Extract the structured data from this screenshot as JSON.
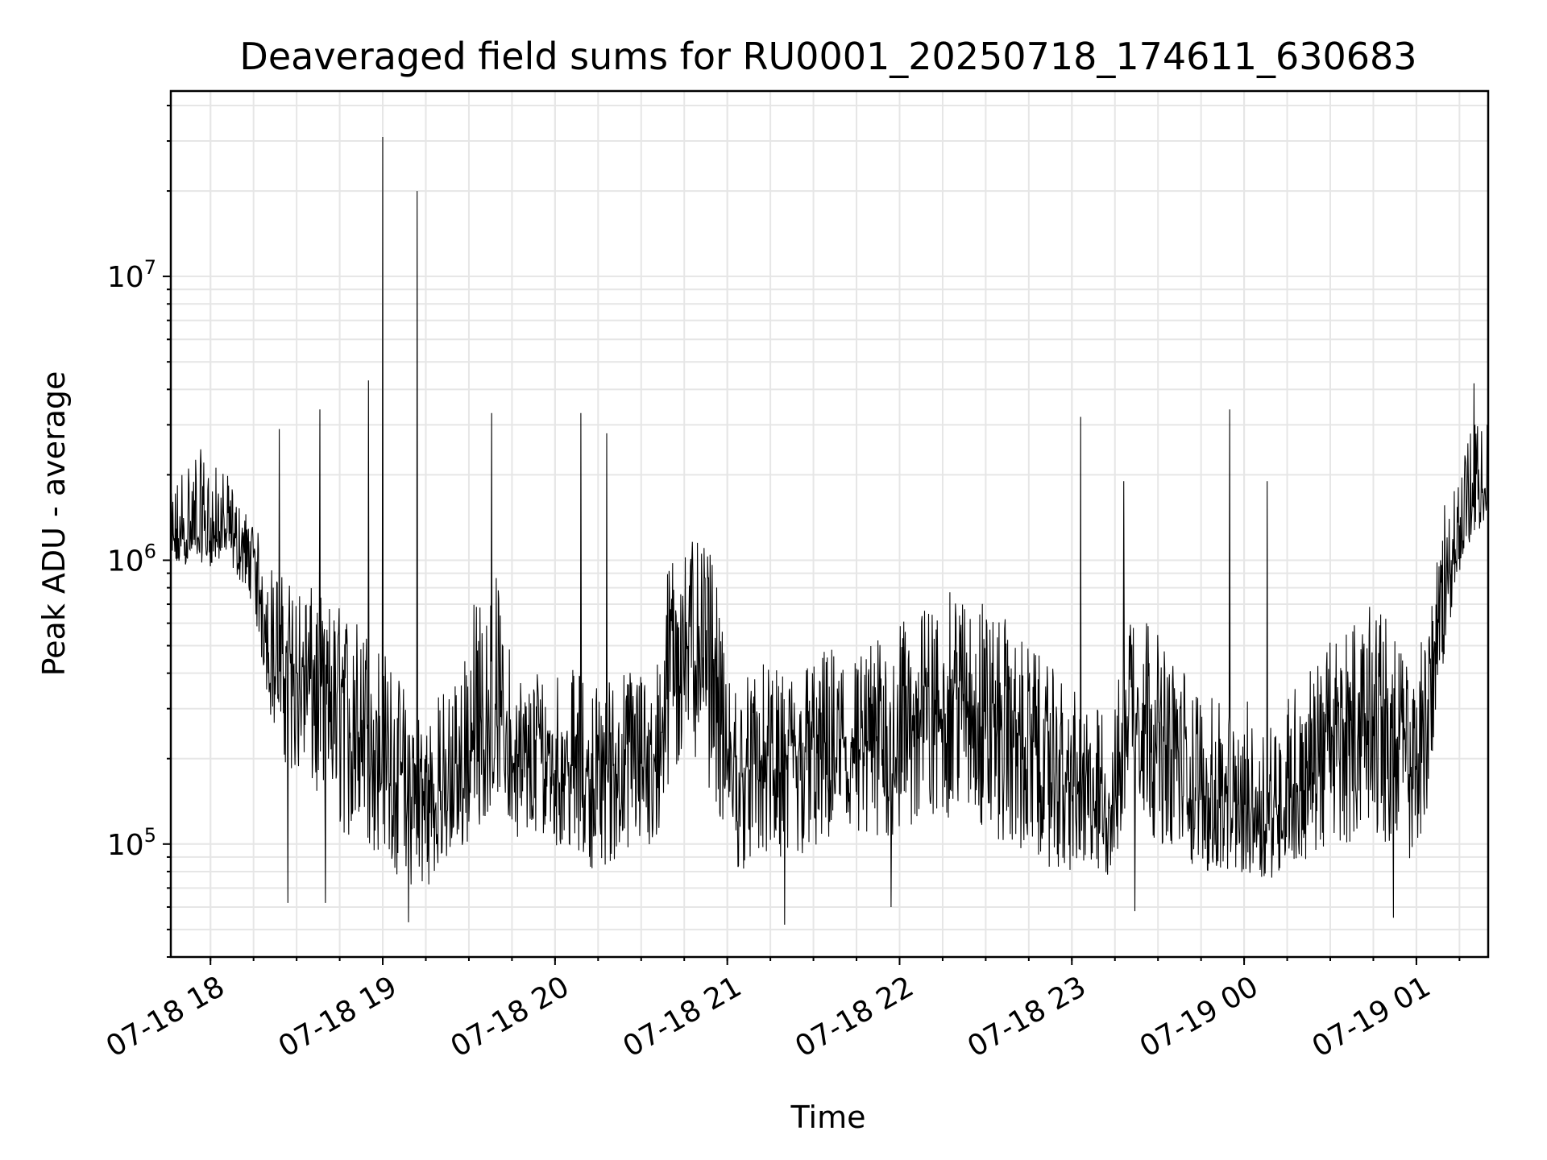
{
  "chart_data": {
    "type": "line",
    "title": "Deaveraged field sums for RU0001_20250718_174611_630683",
    "xlabel": "Time",
    "ylabel": "Peak ADU - average",
    "y_scale": "log",
    "ylim": [
      40000,
      45000000
    ],
    "xlim": [
      "2025-07-18T17:46:11",
      "2025-07-19T01:25:00"
    ],
    "grid": "major and minor",
    "legend": "none",
    "line_color": "#000000",
    "x_tick_labels": [
      "07-18 18",
      "07-18 19",
      "07-18 20",
      "07-18 21",
      "07-18 22",
      "07-18 23",
      "07-19 00",
      "07-19 01"
    ],
    "x_tick_values": [
      "2025-07-18T18:00:00",
      "2025-07-18T19:00:00",
      "2025-07-18T20:00:00",
      "2025-07-18T21:00:00",
      "2025-07-18T22:00:00",
      "2025-07-18T23:00:00",
      "2025-07-19T00:00:00",
      "2025-07-19T01:00:00"
    ],
    "y_tick_labels": [
      {
        "base": "10",
        "exp": "5",
        "value": 100000
      },
      {
        "base": "10",
        "exp": "6",
        "value": 1000000
      },
      {
        "base": "10",
        "exp": "7",
        "value": 10000000
      }
    ],
    "series": [
      {
        "x": [
          "2025-07-18T17:46:11",
          "2025-07-18T17:50:00",
          "2025-07-18T17:55:00",
          "2025-07-18T18:00:00",
          "2025-07-18T18:05:00",
          "2025-07-18T18:10:00",
          "2025-07-18T18:15:00",
          "2025-07-18T18:20:00",
          "2025-07-18T18:25:00",
          "2025-07-18T18:30:00",
          "2025-07-18T18:35:00",
          "2025-07-18T18:40:00",
          "2025-07-18T18:45:00",
          "2025-07-18T18:50:00",
          "2025-07-18T18:55:00",
          "2025-07-18T19:00:00",
          "2025-07-18T19:05:00",
          "2025-07-18T19:10:00",
          "2025-07-18T19:15:00",
          "2025-07-18T19:20:00",
          "2025-07-18T19:25:00",
          "2025-07-18T19:30:00",
          "2025-07-18T19:35:00",
          "2025-07-18T19:40:00",
          "2025-07-18T19:45:00",
          "2025-07-18T19:50:00",
          "2025-07-18T19:55:00",
          "2025-07-18T20:00:00",
          "2025-07-18T20:05:00",
          "2025-07-18T20:10:00",
          "2025-07-18T20:15:00",
          "2025-07-18T20:20:00",
          "2025-07-18T20:25:00",
          "2025-07-18T20:30:00",
          "2025-07-18T20:35:00",
          "2025-07-18T20:40:00",
          "2025-07-18T20:45:00",
          "2025-07-18T20:50:00",
          "2025-07-18T20:55:00",
          "2025-07-18T21:00:00",
          "2025-07-18T21:05:00",
          "2025-07-18T21:10:00",
          "2025-07-18T21:15:00",
          "2025-07-18T21:20:00",
          "2025-07-18T21:25:00",
          "2025-07-18T21:30:00",
          "2025-07-18T21:35:00",
          "2025-07-18T21:40:00",
          "2025-07-18T21:45:00",
          "2025-07-18T21:50:00",
          "2025-07-18T21:55:00",
          "2025-07-18T22:00:00",
          "2025-07-18T22:05:00",
          "2025-07-18T22:10:00",
          "2025-07-18T22:15:00",
          "2025-07-18T22:20:00",
          "2025-07-18T22:25:00",
          "2025-07-18T22:30:00",
          "2025-07-18T22:35:00",
          "2025-07-18T22:40:00",
          "2025-07-18T22:45:00",
          "2025-07-18T22:50:00",
          "2025-07-18T22:55:00",
          "2025-07-18T23:00:00",
          "2025-07-18T23:05:00",
          "2025-07-18T23:10:00",
          "2025-07-18T23:15:00",
          "2025-07-18T23:20:00",
          "2025-07-18T23:25:00",
          "2025-07-18T23:30:00",
          "2025-07-18T23:35:00",
          "2025-07-18T23:40:00",
          "2025-07-18T23:45:00",
          "2025-07-18T23:50:00",
          "2025-07-18T23:55:00",
          "2025-07-19T00:00:00",
          "2025-07-19T00:05:00",
          "2025-07-19T00:10:00",
          "2025-07-19T00:15:00",
          "2025-07-19T00:20:00",
          "2025-07-19T00:25:00",
          "2025-07-19T00:30:00",
          "2025-07-19T00:35:00",
          "2025-07-19T00:40:00",
          "2025-07-19T00:45:00",
          "2025-07-19T00:50:00",
          "2025-07-19T00:55:00",
          "2025-07-19T01:00:00",
          "2025-07-19T01:05:00",
          "2025-07-19T01:10:00",
          "2025-07-19T01:15:00",
          "2025-07-19T01:20:00",
          "2025-07-19T01:25:00"
        ],
        "y_typical": [
          1100000,
          1150000,
          1250000,
          1200000,
          1300000,
          1100000,
          1000000,
          550000,
          450000,
          400000,
          380000,
          350000,
          320000,
          280000,
          250000,
          220000,
          180000,
          150000,
          140000,
          150000,
          160000,
          200000,
          250000,
          300000,
          190000,
          180000,
          210000,
          200000,
          190000,
          180000,
          170000,
          190000,
          200000,
          210000,
          180000,
          500000,
          600000,
          550000,
          500000,
          180000,
          170000,
          200000,
          190000,
          180000,
          200000,
          210000,
          220000,
          230000,
          200000,
          220000,
          240000,
          260000,
          280000,
          300000,
          320000,
          340000,
          330000,
          300000,
          280000,
          250000,
          220000,
          200000,
          180000,
          160000,
          150000,
          140000,
          140000,
          350000,
          300000,
          250000,
          200000,
          180000,
          150000,
          140000,
          130000,
          140000,
          130000,
          130000,
          150000,
          170000,
          200000,
          230000,
          260000,
          280000,
          300000,
          270000,
          200000,
          180000,
          400000,
          800000,
          1300000,
          1700000,
          1800000
        ],
        "y_low": [
          900000,
          950000,
          1000000,
          950000,
          1000000,
          850000,
          700000,
          300000,
          200000,
          170000,
          150000,
          120000,
          110000,
          100000,
          95000,
          90000,
          75000,
          70000,
          70000,
          80000,
          90000,
          100000,
          120000,
          150000,
          110000,
          100000,
          110000,
          100000,
          90000,
          85000,
          80000,
          85000,
          90000,
          100000,
          85000,
          150000,
          200000,
          180000,
          150000,
          85000,
          80000,
          90000,
          85000,
          80000,
          85000,
          90000,
          95000,
          100000,
          90000,
          95000,
          100000,
          105000,
          110000,
          115000,
          120000,
          125000,
          120000,
          110000,
          100000,
          95000,
          90000,
          85000,
          80000,
          78000,
          76000,
          75000,
          75000,
          150000,
          120000,
          100000,
          90000,
          85000,
          80000,
          78000,
          76000,
          78000,
          76000,
          76000,
          80000,
          85000,
          90000,
          95000,
          100000,
          105000,
          110000,
          100000,
          90000,
          85000,
          150000,
          500000,
          900000,
          1200000,
          1300000
        ],
        "y_high": [
          1700000,
          2300000,
          2600000,
          2200000,
          2100000,
          1600000,
          1400000,
          1000000,
          900000,
          850000,
          800000,
          750000,
          700000,
          650000,
          600000,
          500000,
          400000,
          350000,
          300000,
          350000,
          400000,
          700000,
          800000,
          900000,
          450000,
          400000,
          450000,
          450000,
          420000,
          400000,
          380000,
          400000,
          420000,
          450000,
          400000,
          1100000,
          1200000,
          1150000,
          1050000,
          400000,
          380000,
          450000,
          420000,
          400000,
          450000,
          470000,
          500000,
          520000,
          480000,
          520000,
          560000,
          600000,
          650000,
          700000,
          750000,
          800000,
          780000,
          720000,
          650000,
          580000,
          500000,
          450000,
          400000,
          350000,
          330000,
          300000,
          310000,
          900000,
          700000,
          550000,
          450000,
          420000,
          350000,
          320000,
          300000,
          330000,
          300000,
          300000,
          350000,
          400000,
          450000,
          520000,
          600000,
          650000,
          700000,
          650000,
          480000,
          420000,
          900000,
          1600000,
          2500000,
          3000000,
          3200000
        ],
        "spikes": [
          {
            "x": "2025-07-18T18:24:00",
            "y": 2900000
          },
          {
            "x": "2025-07-18T18:38:00",
            "y": 3400000
          },
          {
            "x": "2025-07-18T18:55:00",
            "y": 4300000
          },
          {
            "x": "2025-07-18T19:00:00",
            "y": 31000000
          },
          {
            "x": "2025-07-18T19:12:00",
            "y": 20000000
          },
          {
            "x": "2025-07-18T19:38:00",
            "y": 3300000
          },
          {
            "x": "2025-07-18T20:09:00",
            "y": 3300000
          },
          {
            "x": "2025-07-18T20:18:00",
            "y": 2800000
          },
          {
            "x": "2025-07-18T23:03:00",
            "y": 3200000
          },
          {
            "x": "2025-07-18T23:18:00",
            "y": 1900000
          },
          {
            "x": "2025-07-18T23:55:00",
            "y": 3400000
          },
          {
            "x": "2025-07-19T00:08:00",
            "y": 1900000
          },
          {
            "x": "2025-07-19T01:20:00",
            "y": 4200000
          }
        ],
        "dips": [
          {
            "x": "2025-07-18T18:27:00",
            "y": 62000
          },
          {
            "x": "2025-07-18T18:40:00",
            "y": 62000
          },
          {
            "x": "2025-07-18T19:09:00",
            "y": 53000
          },
          {
            "x": "2025-07-18T21:20:00",
            "y": 52000
          },
          {
            "x": "2025-07-18T21:57:00",
            "y": 60000
          },
          {
            "x": "2025-07-18T23:22:00",
            "y": 58000
          },
          {
            "x": "2025-07-19T00:52:00",
            "y": 55000
          }
        ]
      }
    ]
  }
}
